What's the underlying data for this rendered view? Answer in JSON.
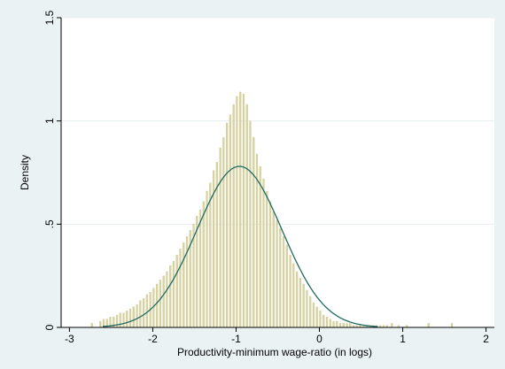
{
  "chart_data": {
    "type": "bar",
    "title": "",
    "xlabel": "Productivity-minimum wage-ratio (in logs)",
    "ylabel": "Density",
    "xlim": [
      -3.1,
      2.1
    ],
    "ylim": [
      0,
      1.5
    ],
    "x_ticks": [
      -3,
      -2,
      -1,
      0,
      1,
      2
    ],
    "x_tick_labels": [
      "-3",
      "-2",
      "-1",
      "0",
      "1",
      "2"
    ],
    "y_ticks": [
      0,
      0.5,
      1,
      1.5
    ],
    "y_tick_labels": [
      "0",
      ".5",
      "1",
      "1.5"
    ],
    "grid": true,
    "legend": "none",
    "colors": {
      "background": "#eaf2f3",
      "plot_background": "#ffffff",
      "bars": "#d8d3a0",
      "bar_edge": "#c9c48c",
      "curve": "#1f6b62",
      "grid": "#e8eef0",
      "axis": "#000000"
    },
    "histogram": {
      "bin_width": 0.02,
      "bins": [
        [
          -2.74,
          0.02
        ],
        [
          -2.64,
          0.03
        ],
        [
          -2.6,
          0.04
        ],
        [
          -2.56,
          0.04
        ],
        [
          -2.52,
          0.05
        ],
        [
          -2.48,
          0.05
        ],
        [
          -2.44,
          0.06
        ],
        [
          -2.4,
          0.07
        ],
        [
          -2.36,
          0.07
        ],
        [
          -2.32,
          0.08
        ],
        [
          -2.28,
          0.09
        ],
        [
          -2.24,
          0.1
        ],
        [
          -2.2,
          0.11
        ],
        [
          -2.16,
          0.13
        ],
        [
          -2.12,
          0.14
        ],
        [
          -2.08,
          0.16
        ],
        [
          -2.04,
          0.17
        ],
        [
          -2.0,
          0.19
        ],
        [
          -1.96,
          0.21
        ],
        [
          -1.92,
          0.23
        ],
        [
          -1.88,
          0.25
        ],
        [
          -1.84,
          0.27
        ],
        [
          -1.8,
          0.3
        ],
        [
          -1.76,
          0.32
        ],
        [
          -1.72,
          0.35
        ],
        [
          -1.68,
          0.38
        ],
        [
          -1.64,
          0.41
        ],
        [
          -1.6,
          0.44
        ],
        [
          -1.56,
          0.47
        ],
        [
          -1.52,
          0.5
        ],
        [
          -1.48,
          0.54
        ],
        [
          -1.44,
          0.57
        ],
        [
          -1.4,
          0.61
        ],
        [
          -1.36,
          0.66
        ],
        [
          -1.32,
          0.7
        ],
        [
          -1.28,
          0.76
        ],
        [
          -1.24,
          0.8
        ],
        [
          -1.2,
          0.87
        ],
        [
          -1.16,
          0.92
        ],
        [
          -1.12,
          0.99
        ],
        [
          -1.08,
          1.03
        ],
        [
          -1.04,
          1.08
        ],
        [
          -1.0,
          1.12
        ],
        [
          -0.96,
          1.14
        ],
        [
          -0.92,
          1.13
        ],
        [
          -0.88,
          1.08
        ],
        [
          -0.84,
          1.0
        ],
        [
          -0.8,
          0.92
        ],
        [
          -0.76,
          0.84
        ],
        [
          -0.72,
          0.78
        ],
        [
          -0.68,
          0.72
        ],
        [
          -0.64,
          0.66
        ],
        [
          -0.6,
          0.61
        ],
        [
          -0.56,
          0.56
        ],
        [
          -0.52,
          0.52
        ],
        [
          -0.48,
          0.48
        ],
        [
          -0.44,
          0.44
        ],
        [
          -0.4,
          0.4
        ],
        [
          -0.36,
          0.35
        ],
        [
          -0.32,
          0.31
        ],
        [
          -0.28,
          0.27
        ],
        [
          -0.24,
          0.24
        ],
        [
          -0.2,
          0.21
        ],
        [
          -0.16,
          0.18
        ],
        [
          -0.12,
          0.15
        ],
        [
          -0.08,
          0.12
        ],
        [
          -0.04,
          0.1
        ],
        [
          0.0,
          0.08
        ],
        [
          0.04,
          0.06
        ],
        [
          0.08,
          0.05
        ],
        [
          0.12,
          0.04
        ],
        [
          0.16,
          0.03
        ],
        [
          0.2,
          0.03
        ],
        [
          0.24,
          0.02
        ],
        [
          0.28,
          0.02
        ],
        [
          0.32,
          0.02
        ],
        [
          0.36,
          0.02
        ],
        [
          0.4,
          0.01
        ],
        [
          0.44,
          0.01
        ],
        [
          0.48,
          0.01
        ],
        [
          0.52,
          0.01
        ],
        [
          0.56,
          0.01
        ],
        [
          0.6,
          0.01
        ],
        [
          0.64,
          0.01
        ],
        [
          0.68,
          0.01
        ],
        [
          0.72,
          0.01
        ],
        [
          0.76,
          0.01
        ],
        [
          0.8,
          0.01
        ],
        [
          0.86,
          0.02
        ],
        [
          0.94,
          0.01
        ],
        [
          1.04,
          0.01
        ],
        [
          1.3,
          0.02
        ],
        [
          1.58,
          0.02
        ]
      ]
    },
    "normal_curve": {
      "mean": -0.96,
      "sd": 0.51,
      "peak_density": 0.78
    }
  }
}
